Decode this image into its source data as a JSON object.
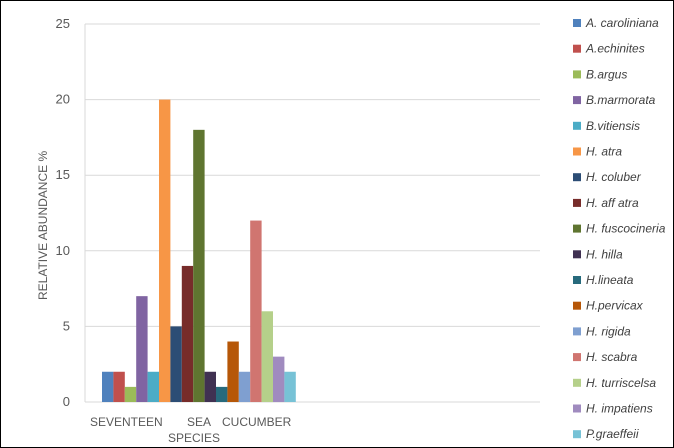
{
  "chart_data": {
    "type": "bar",
    "ylabel": "RELATIVE ABUNDANCE %",
    "xlabel_words": [
      "SEVENTEEN",
      "SEA",
      "SPECIES",
      "CUCUMBER"
    ],
    "ylim": [
      0,
      25
    ],
    "yticks": [
      "0",
      "5",
      "10",
      "15",
      "20",
      "25"
    ],
    "grid": true,
    "legend_position": "right",
    "series": [
      {
        "name": "A. caroliniana",
        "value": 2,
        "color": "#4f81bd"
      },
      {
        "name": "A.echinites",
        "value": 2,
        "color": "#c0504d"
      },
      {
        "name": "B.argus",
        "value": 1,
        "color": "#9bbb59"
      },
      {
        "name": "B.marmorata",
        "value": 7,
        "color": "#8064a2"
      },
      {
        "name": "B.vitiensis",
        "value": 2,
        "color": "#4bacc6"
      },
      {
        "name": "H. atra",
        "value": 20,
        "color": "#f79646"
      },
      {
        "name": "H. coluber",
        "value": 5,
        "color": "#2c4d75"
      },
      {
        "name": "H. aff atra",
        "value": 9,
        "color": "#772c2a"
      },
      {
        "name": "H. fuscocineria",
        "value": 18,
        "color": "#5f7530"
      },
      {
        "name": "H. hilla",
        "value": 2,
        "color": "#403152"
      },
      {
        "name": "H.lineata",
        "value": 1,
        "color": "#276a7c"
      },
      {
        "name": "H.pervicax",
        "value": 4,
        "color": "#b65708"
      },
      {
        "name": "H. rigida",
        "value": 2,
        "color": "#7f9fd0"
      },
      {
        "name": "H. scabra",
        "value": 12,
        "color": "#d07570"
      },
      {
        "name": "H. turriscelsa",
        "value": 6,
        "color": "#b5d08a"
      },
      {
        "name": "H. impatiens",
        "value": 3,
        "color": "#a08bbf"
      },
      {
        "name": "P.graeffeii",
        "value": 2,
        "color": "#77c2d6"
      }
    ]
  }
}
